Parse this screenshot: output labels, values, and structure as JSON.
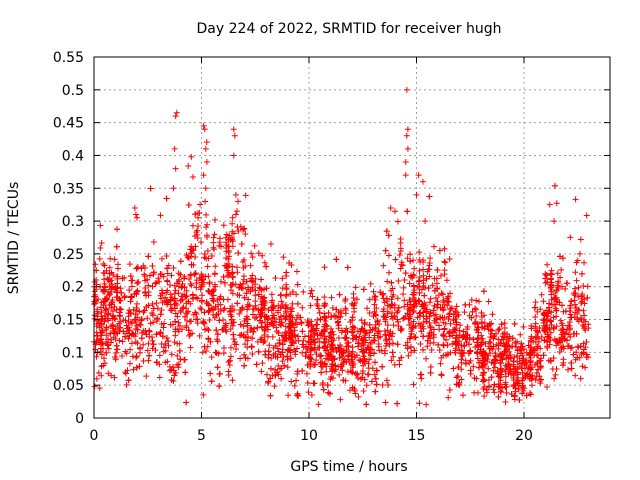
{
  "chart_data": {
    "type": "scatter",
    "title": "Day 224 of 2022, SRMTID for receiver hugh",
    "xlabel": "GPS time / hours",
    "ylabel": "SRMTID / TECUs",
    "xlim": [
      0,
      24
    ],
    "ylim": [
      0,
      0.55
    ],
    "xticks": [
      0,
      5,
      10,
      15,
      20
    ],
    "yticks": [
      0,
      0.05,
      0.1,
      0.15,
      0.2,
      0.25,
      0.3,
      0.35,
      0.4,
      0.45,
      0.5,
      0.55
    ],
    "grid": true,
    "marker": "+",
    "color": "#ff0000",
    "series": [
      {
        "name": "SRMTID",
        "trend": [
          [
            0.0,
            0.14
          ],
          [
            0.5,
            0.15
          ],
          [
            1.0,
            0.15
          ],
          [
            1.5,
            0.14
          ],
          [
            2.0,
            0.15
          ],
          [
            2.5,
            0.16
          ],
          [
            3.0,
            0.16
          ],
          [
            3.5,
            0.15
          ],
          [
            4.0,
            0.16
          ],
          [
            4.5,
            0.18
          ],
          [
            5.0,
            0.19
          ],
          [
            5.5,
            0.16
          ],
          [
            6.0,
            0.17
          ],
          [
            6.5,
            0.18
          ],
          [
            7.0,
            0.16
          ],
          [
            7.5,
            0.15
          ],
          [
            8.0,
            0.14
          ],
          [
            8.5,
            0.13
          ],
          [
            9.0,
            0.13
          ],
          [
            9.5,
            0.12
          ],
          [
            10.0,
            0.11
          ],
          [
            10.5,
            0.11
          ],
          [
            11.0,
            0.105
          ],
          [
            11.5,
            0.11
          ],
          [
            12.0,
            0.11
          ],
          [
            12.5,
            0.1
          ],
          [
            13.0,
            0.11
          ],
          [
            13.5,
            0.14
          ],
          [
            14.0,
            0.16
          ],
          [
            14.5,
            0.17
          ],
          [
            15.0,
            0.16
          ],
          [
            15.5,
            0.16
          ],
          [
            16.0,
            0.15
          ],
          [
            16.5,
            0.14
          ],
          [
            17.0,
            0.12
          ],
          [
            17.5,
            0.11
          ],
          [
            18.0,
            0.1
          ],
          [
            18.5,
            0.09
          ],
          [
            19.0,
            0.085
          ],
          [
            19.5,
            0.08
          ],
          [
            20.0,
            0.08
          ],
          [
            20.5,
            0.1
          ],
          [
            21.0,
            0.13
          ],
          [
            21.5,
            0.15
          ],
          [
            22.0,
            0.14
          ],
          [
            22.5,
            0.15
          ],
          [
            23.0,
            0.14
          ]
        ],
        "peaks": [
          [
            1.9,
            0.32
          ],
          [
            1.95,
            0.31
          ],
          [
            2.0,
            0.305
          ],
          [
            3.8,
            0.46
          ],
          [
            3.85,
            0.465
          ],
          [
            3.75,
            0.41
          ],
          [
            3.8,
            0.38
          ],
          [
            3.7,
            0.35
          ],
          [
            5.1,
            0.445
          ],
          [
            5.15,
            0.44
          ],
          [
            5.2,
            0.41
          ],
          [
            5.25,
            0.39
          ],
          [
            5.1,
            0.37
          ],
          [
            5.2,
            0.35
          ],
          [
            6.5,
            0.44
          ],
          [
            6.55,
            0.43
          ],
          [
            6.5,
            0.4
          ],
          [
            6.6,
            0.34
          ],
          [
            6.7,
            0.33
          ],
          [
            6.6,
            0.31
          ],
          [
            14.55,
            0.5
          ],
          [
            14.6,
            0.44
          ],
          [
            14.55,
            0.43
          ],
          [
            14.6,
            0.41
          ],
          [
            14.5,
            0.39
          ],
          [
            14.5,
            0.37
          ],
          [
            15.1,
            0.37
          ],
          [
            15.3,
            0.36
          ],
          [
            15.0,
            0.34
          ],
          [
            15.4,
            0.3
          ],
          [
            13.8,
            0.32
          ],
          [
            14.0,
            0.315
          ],
          [
            21.2,
            0.325
          ],
          [
            21.4,
            0.3
          ],
          [
            22.4,
            0.333
          ],
          [
            22.6,
            0.25
          ],
          [
            22.5,
            0.24
          ]
        ]
      }
    ]
  }
}
